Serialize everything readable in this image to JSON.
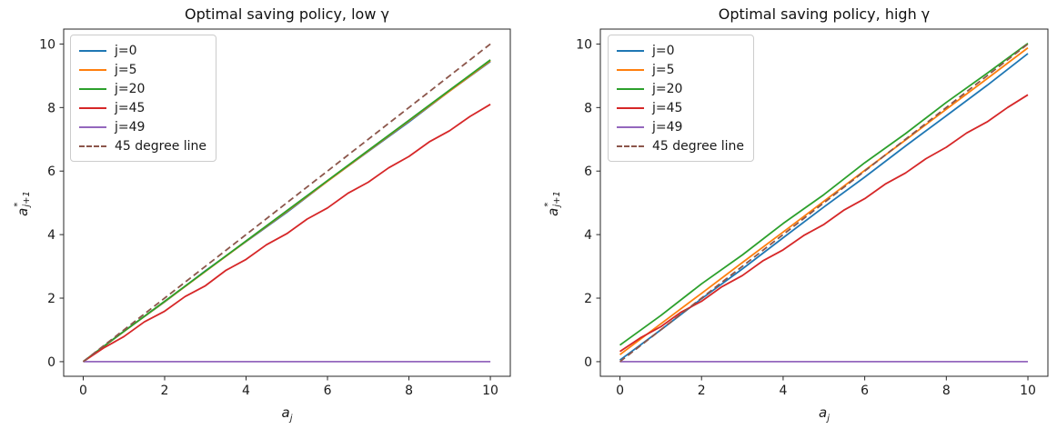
{
  "figure": {
    "background": "#ffffff",
    "spine_color": "#262626",
    "text_color": "#1a1a1a"
  },
  "chart_data": [
    {
      "type": "line",
      "title": "Optimal saving policy, low γ",
      "xlabel": {
        "base": "a",
        "sub": "j"
      },
      "ylabel": {
        "base": "a",
        "sup": "*",
        "sub": "j+1"
      },
      "xlim": [
        -0.48,
        10.49
      ],
      "ylim": [
        -0.46,
        10.47
      ],
      "xticks": [
        0,
        2,
        4,
        6,
        8,
        10
      ],
      "yticks": [
        0,
        2,
        4,
        6,
        8,
        10
      ],
      "grid": false,
      "legend_position": "upper left",
      "series": [
        {
          "name": "j=0",
          "color": "#1f77b4",
          "dash": false,
          "x": [
            0,
            1,
            2,
            3,
            4,
            5,
            6,
            7,
            8,
            9,
            10
          ],
          "y": [
            0,
            0.96,
            1.88,
            2.86,
            3.78,
            4.7,
            5.68,
            6.62,
            7.55,
            8.52,
            9.45
          ]
        },
        {
          "name": "j=5",
          "color": "#ff7f0e",
          "dash": false,
          "x": [
            0,
            1,
            2,
            3,
            4,
            5,
            6,
            7,
            8,
            9,
            10
          ],
          "y": [
            0,
            0.95,
            1.89,
            2.84,
            3.79,
            4.73,
            5.68,
            6.63,
            7.58,
            8.52,
            9.47
          ]
        },
        {
          "name": "j=20",
          "color": "#2ca02c",
          "dash": false,
          "x": [
            0,
            1,
            2,
            3,
            4,
            5,
            6,
            7,
            8,
            9,
            10
          ],
          "y": [
            0,
            0.95,
            1.9,
            2.85,
            3.8,
            4.75,
            5.7,
            6.65,
            7.6,
            8.55,
            9.5
          ]
        },
        {
          "name": "j=45",
          "color": "#d62728",
          "dash": false,
          "x": [
            0,
            0.5,
            1,
            1.5,
            2,
            2.5,
            3,
            3.5,
            4,
            4.5,
            5,
            5.5,
            6,
            6.5,
            7,
            7.5,
            8,
            8.5,
            9,
            9.5,
            10
          ],
          "y": [
            0,
            0.43,
            0.79,
            1.25,
            1.59,
            2.05,
            2.39,
            2.87,
            3.22,
            3.68,
            4.03,
            4.49,
            4.84,
            5.3,
            5.65,
            6.1,
            6.46,
            6.92,
            7.27,
            7.72,
            8.1
          ]
        },
        {
          "name": "j=49",
          "color": "#9467bd",
          "dash": false,
          "x": [
            0,
            10
          ],
          "y": [
            0,
            0
          ]
        },
        {
          "name": "45 degree line",
          "color": "#8c564b",
          "dash": true,
          "x": [
            0,
            10
          ],
          "y": [
            0,
            10
          ]
        }
      ]
    },
    {
      "type": "line",
      "title": "Optimal saving policy, high γ",
      "xlabel": {
        "base": "a",
        "sub": "j"
      },
      "ylabel": {
        "base": "a",
        "sup": "*",
        "sub": "j+1"
      },
      "xlim": [
        -0.48,
        10.49
      ],
      "ylim": [
        -0.46,
        10.47
      ],
      "xticks": [
        0,
        2,
        4,
        6,
        8,
        10
      ],
      "yticks": [
        0,
        2,
        4,
        6,
        8,
        10
      ],
      "grid": false,
      "legend_position": "upper left",
      "series": [
        {
          "name": "j=0",
          "color": "#1f77b4",
          "dash": false,
          "x": [
            0,
            1,
            2,
            3,
            4,
            5,
            6,
            7,
            8,
            9,
            10
          ],
          "y": [
            0.05,
            1.0,
            1.98,
            2.92,
            3.9,
            4.87,
            5.81,
            6.79,
            7.74,
            8.7,
            9.7
          ]
        },
        {
          "name": "j=5",
          "color": "#ff7f0e",
          "dash": false,
          "x": [
            0,
            1,
            2,
            3,
            4,
            5,
            6,
            7,
            8,
            9,
            10
          ],
          "y": [
            0.22,
            1.19,
            2.15,
            3.12,
            4.08,
            5.05,
            6.02,
            6.98,
            7.95,
            8.91,
            9.88
          ]
        },
        {
          "name": "j=20",
          "color": "#2ca02c",
          "dash": false,
          "x": [
            0,
            1,
            2,
            3,
            4,
            5,
            6,
            7,
            8,
            9,
            10
          ],
          "y": [
            0.52,
            1.45,
            2.45,
            3.36,
            4.35,
            5.26,
            6.26,
            7.18,
            8.16,
            9.08,
            10.02
          ]
        },
        {
          "name": "j=45",
          "color": "#d62728",
          "dash": false,
          "x": [
            0,
            0.5,
            1,
            1.5,
            2,
            2.5,
            3,
            3.5,
            4,
            4.5,
            5,
            5.5,
            6,
            6.5,
            7,
            7.5,
            8,
            8.5,
            9,
            9.5,
            10
          ],
          "y": [
            0.32,
            0.75,
            1.1,
            1.56,
            1.9,
            2.36,
            2.71,
            3.17,
            3.52,
            3.97,
            4.32,
            4.78,
            5.13,
            5.59,
            5.94,
            6.39,
            6.75,
            7.2,
            7.55,
            8.0,
            8.4
          ]
        },
        {
          "name": "j=49",
          "color": "#9467bd",
          "dash": false,
          "x": [
            0,
            10
          ],
          "y": [
            0,
            0
          ]
        },
        {
          "name": "45 degree line",
          "color": "#8c564b",
          "dash": true,
          "x": [
            0,
            10
          ],
          "y": [
            0,
            10
          ]
        }
      ]
    }
  ]
}
